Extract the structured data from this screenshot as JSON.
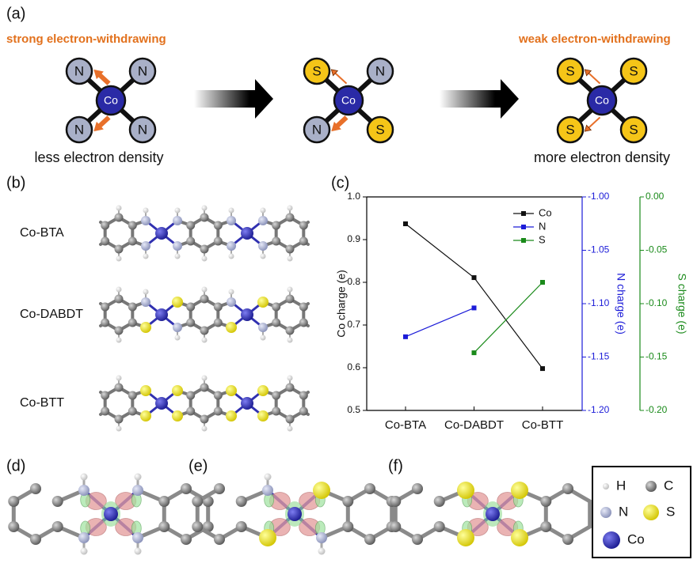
{
  "panel_labels": [
    "(a)",
    "(b)",
    "(c)",
    "(d)",
    "(e)",
    "(f)"
  ],
  "panel_a": {
    "left_caption": "strong electron-withdrawing",
    "right_caption": "weak electron-withdrawing",
    "left_note": "less electron density",
    "right_note": "more electron density",
    "complexes": [
      {
        "center": "Co",
        "ligands": [
          "N",
          "N",
          "N",
          "N"
        ]
      },
      {
        "center": "Co",
        "ligands": [
          "S",
          "N",
          "N",
          "S"
        ]
      },
      {
        "center": "Co",
        "ligands": [
          "S",
          "S",
          "S",
          "S"
        ]
      }
    ]
  },
  "panel_b": {
    "structures": [
      "Co-BTA",
      "Co-DABDT",
      "Co-BTT"
    ]
  },
  "chart_data": {
    "type": "line",
    "categories": [
      "Co-BTA",
      "Co-DABDT",
      "Co-BTT"
    ],
    "ylabel": "Co charge (e)",
    "y2label": "N charge (e)",
    "y3label": "S charge (e)",
    "ylim": [
      0.5,
      1.0
    ],
    "yticks": [
      0.5,
      0.6,
      0.7,
      0.8,
      0.9,
      {
        "value": 1.0,
        "label": "1.0"
      }
    ],
    "y2lim": [
      -1.2,
      -1.0
    ],
    "y2ticks": [
      {
        "value": -1.2,
        "label": "-1.20"
      },
      -1.15,
      {
        "value": -1.1,
        "label": "-1.10"
      },
      -1.05,
      {
        "value": -1.0,
        "label": "-1.00"
      }
    ],
    "y3lim": [
      -0.2,
      0
    ],
    "y3ticks": [
      {
        "value": -0.2,
        "label": "-0.20"
      },
      -0.15,
      {
        "value": -0.1,
        "label": "-0.10"
      },
      -0.05,
      {
        "value": 0,
        "label": "0.00"
      }
    ],
    "legend": "upper right",
    "series": [
      {
        "name": "Co",
        "color": "#111111",
        "values": [
          0.937,
          0.811,
          0.598
        ]
      },
      {
        "name": "N",
        "color": "#1c1cd8",
        "axis": "y2",
        "values": [
          -1.131,
          -1.104,
          null
        ]
      },
      {
        "name": "S",
        "color": "#1a8a1a",
        "axis": "y3",
        "values": [
          null,
          -0.146,
          -0.08
        ]
      }
    ]
  },
  "legend": {
    "atoms": [
      "H",
      "C",
      "N",
      "S",
      "Co"
    ]
  }
}
